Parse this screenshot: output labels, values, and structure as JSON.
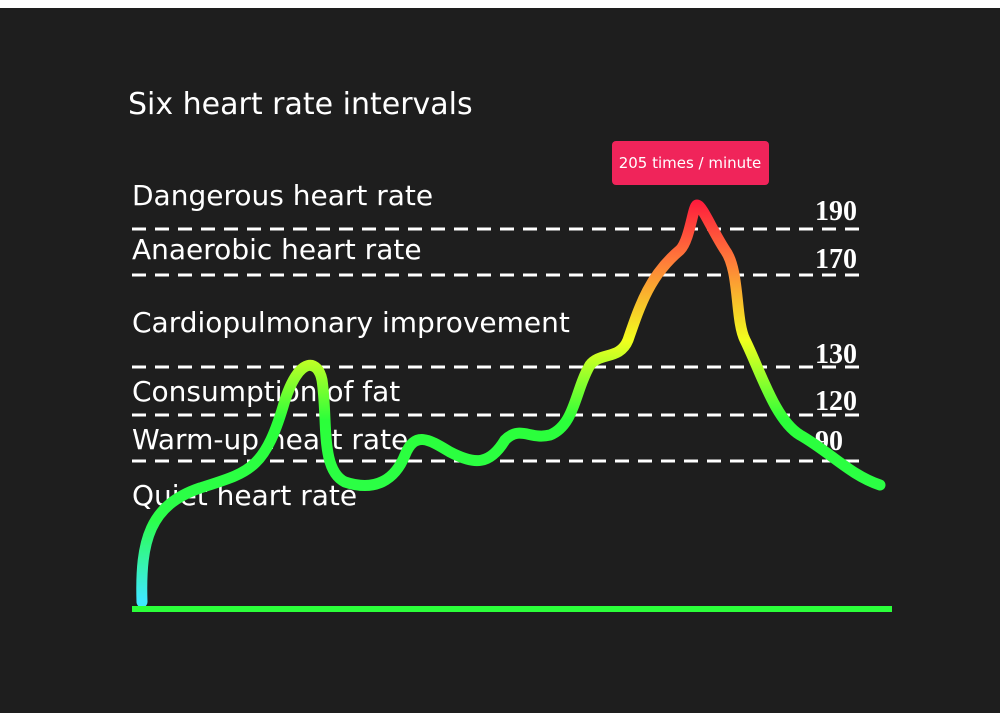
{
  "title": "Six heart rate intervals",
  "peak_label": "205 times / minute",
  "zones": [
    "Dangerous heart rate",
    "Anaerobic heart rate",
    "Cardiopulmonary improvement",
    "Consumption of fat",
    "Warm-up heart rate",
    "Quiet heart rate"
  ],
  "thresholds": [
    190,
    170,
    130,
    120,
    90
  ]
}
